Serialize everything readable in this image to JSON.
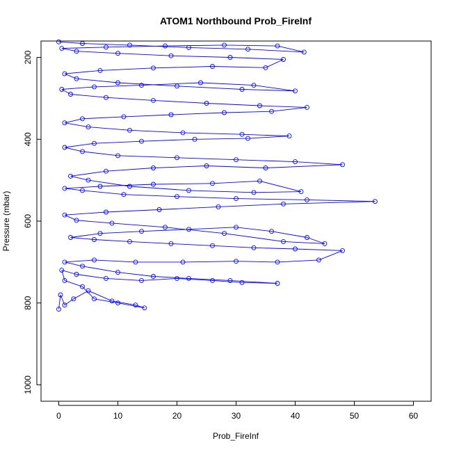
{
  "chart_data": {
    "type": "line",
    "title": "ATOM1 Northbound Prob_FireInf",
    "xlabel": "Prob_FireInf",
    "ylabel": "Pressure (mbar)",
    "xlim": [
      -3,
      63
    ],
    "ylim": [
      1040,
      160
    ],
    "y_reversed": true,
    "x_ticks": [
      0,
      10,
      20,
      30,
      40,
      50,
      60
    ],
    "x_tick_labels": [
      "0",
      "10",
      "20",
      "30",
      "40",
      "50",
      "60"
    ],
    "y_ticks": [
      200,
      400,
      600,
      800,
      1000
    ],
    "y_tick_labels": [
      "200",
      "400",
      "600",
      "800",
      "1000"
    ],
    "grid": false,
    "legend": "none",
    "series_color": "#0000ff",
    "marker": "open-circle",
    "series": [
      {
        "values": [
          [
            0,
            815
          ],
          [
            0.3,
            780
          ],
          [
            1,
            805
          ],
          [
            2.5,
            790
          ],
          [
            5,
            770
          ],
          [
            9,
            795
          ],
          [
            13,
            805
          ],
          [
            14.5,
            812
          ],
          [
            10,
            800
          ],
          [
            6,
            790
          ],
          [
            4,
            760
          ],
          [
            1,
            745
          ],
          [
            0.5,
            720
          ],
          [
            3,
            730
          ],
          [
            8,
            740
          ],
          [
            14,
            745
          ],
          [
            20,
            740
          ],
          [
            26,
            745
          ],
          [
            31,
            750
          ],
          [
            37,
            752
          ],
          [
            29,
            745
          ],
          [
            22,
            740
          ],
          [
            16,
            735
          ],
          [
            10,
            725
          ],
          [
            4,
            710
          ],
          [
            1,
            700
          ],
          [
            6,
            695
          ],
          [
            13,
            700
          ],
          [
            21,
            700
          ],
          [
            30,
            698
          ],
          [
            37,
            700
          ],
          [
            44,
            695
          ],
          [
            48,
            672
          ],
          [
            40,
            668
          ],
          [
            33,
            665
          ],
          [
            26,
            660
          ],
          [
            19,
            655
          ],
          [
            12,
            650
          ],
          [
            6,
            645
          ],
          [
            2,
            640
          ],
          [
            7,
            630
          ],
          [
            14,
            625
          ],
          [
            22,
            620
          ],
          [
            30,
            615
          ],
          [
            36,
            625
          ],
          [
            42,
            640
          ],
          [
            45,
            655
          ],
          [
            38,
            650
          ],
          [
            28,
            630
          ],
          [
            18,
            615
          ],
          [
            9,
            605
          ],
          [
            3,
            598
          ],
          [
            1,
            585
          ],
          [
            8,
            578
          ],
          [
            17,
            572
          ],
          [
            27,
            565
          ],
          [
            38,
            558
          ],
          [
            53.5,
            552
          ],
          [
            42,
            548
          ],
          [
            30,
            545
          ],
          [
            20,
            540
          ],
          [
            11,
            535
          ],
          [
            4,
            525
          ],
          [
            1,
            520
          ],
          [
            7,
            515
          ],
          [
            16,
            510
          ],
          [
            26,
            508
          ],
          [
            34,
            502
          ],
          [
            41,
            528
          ],
          [
            33,
            530
          ],
          [
            22,
            525
          ],
          [
            12,
            515
          ],
          [
            5,
            500
          ],
          [
            2,
            490
          ],
          [
            8,
            478
          ],
          [
            16,
            470
          ],
          [
            25,
            465
          ],
          [
            35,
            470
          ],
          [
            48,
            462
          ],
          [
            40,
            455
          ],
          [
            30,
            450
          ],
          [
            20,
            445
          ],
          [
            10,
            440
          ],
          [
            4,
            430
          ],
          [
            1,
            420
          ],
          [
            6,
            410
          ],
          [
            14,
            405
          ],
          [
            23,
            400
          ],
          [
            32,
            398
          ],
          [
            39,
            392
          ],
          [
            31,
            388
          ],
          [
            21,
            384
          ],
          [
            12,
            378
          ],
          [
            5,
            370
          ],
          [
            1,
            360
          ],
          [
            4,
            350
          ],
          [
            11,
            345
          ],
          [
            19,
            340
          ],
          [
            28,
            335
          ],
          [
            36,
            332
          ],
          [
            42,
            322
          ],
          [
            34,
            318
          ],
          [
            25,
            312
          ],
          [
            16,
            305
          ],
          [
            8,
            298
          ],
          [
            2,
            290
          ],
          [
            0.5,
            278
          ],
          [
            6,
            272
          ],
          [
            14,
            268
          ],
          [
            24,
            262
          ],
          [
            33,
            268
          ],
          [
            40,
            282
          ],
          [
            31,
            278
          ],
          [
            20,
            270
          ],
          [
            10,
            262
          ],
          [
            3,
            252
          ],
          [
            1,
            240
          ],
          [
            7,
            232
          ],
          [
            16,
            226
          ],
          [
            26,
            222
          ],
          [
            35,
            225
          ],
          [
            38,
            205
          ],
          [
            29,
            200
          ],
          [
            19,
            196
          ],
          [
            10,
            190
          ],
          [
            3,
            185
          ],
          [
            0.5,
            178
          ],
          [
            8,
            175
          ],
          [
            18,
            172
          ],
          [
            28,
            170
          ],
          [
            37,
            172
          ],
          [
            41.5,
            187
          ],
          [
            32,
            180
          ],
          [
            22,
            176
          ],
          [
            12,
            170
          ],
          [
            4,
            166
          ],
          [
            0,
            162
          ]
        ]
      }
    ]
  }
}
